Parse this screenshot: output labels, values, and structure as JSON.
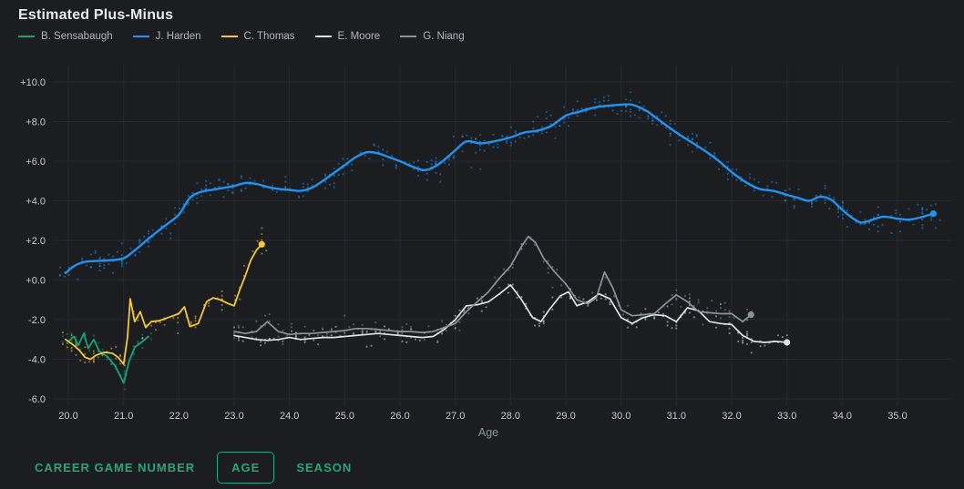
{
  "header": {
    "title": "Estimated Plus-Minus"
  },
  "legend": [
    {
      "label": "B. Sensabaugh",
      "color": "#1fa173"
    },
    {
      "label": "J. Harden",
      "color": "#2492f0"
    },
    {
      "label": "C. Thomas",
      "color": "#f3c73f"
    },
    {
      "label": "E. Moore",
      "color": "#dfe1e4"
    },
    {
      "label": "G. Niang",
      "color": "#8f9398"
    }
  ],
  "controls": {
    "career_game_number_label": "CAREER GAME NUMBER",
    "age_label": "AGE",
    "season_label": "SEASON",
    "selected": "AGE",
    "accent_color": "#2aa57c"
  },
  "chart_data": {
    "type": "line+scatter",
    "title": "Estimated Plus-Minus",
    "xlabel": "Age",
    "ylabel": "",
    "grid": true,
    "legend_position": "top",
    "xlim": [
      19.72,
      35.97
    ],
    "ylim": [
      -6,
      10
    ],
    "x_ticks": {
      "values": [
        20,
        21,
        22,
        23,
        24,
        25,
        26,
        27,
        28,
        29,
        30,
        31,
        32,
        33,
        34,
        35
      ],
      "labels": [
        "20.0",
        "21.0",
        "22.0",
        "23.0",
        "24.0",
        "25.0",
        "26.0",
        "27.0",
        "28.0",
        "29.0",
        "30.0",
        "31.0",
        "32.0",
        "33.0",
        "34.0",
        "35.0"
      ]
    },
    "y_ticks": {
      "values": [
        -6,
        -4,
        -2,
        0,
        2,
        4,
        6,
        8,
        10
      ],
      "labels": [
        "-6.0",
        "-4.0",
        "-2.0",
        "+0.0",
        "+2.0",
        "+4.0",
        "+6.0",
        "+8.0",
        "+10.0"
      ]
    },
    "series": [
      {
        "name": "B. Sensabaugh",
        "color": "#1fa173",
        "width": 1.8,
        "smooth": false,
        "end_dot": false,
        "scatter": {
          "seed": 11,
          "count": 55,
          "xmin": 19.9,
          "xmax": 21.55,
          "jitter": 0.45
        },
        "line": [
          [
            20.0,
            -3.1
          ],
          [
            20.1,
            -2.85
          ],
          [
            20.18,
            -3.3
          ],
          [
            20.28,
            -2.7
          ],
          [
            20.36,
            -3.45
          ],
          [
            20.46,
            -3.0
          ],
          [
            20.56,
            -3.6
          ],
          [
            20.7,
            -3.85
          ],
          [
            20.85,
            -4.35
          ],
          [
            21.0,
            -5.2
          ],
          [
            21.1,
            -4.1
          ],
          [
            21.2,
            -3.4
          ],
          [
            21.32,
            -3.15
          ],
          [
            21.45,
            -2.85
          ]
        ]
      },
      {
        "name": "J. Harden",
        "color": "#2492f0",
        "width": 2.4,
        "smooth": true,
        "end_dot": true,
        "scatter": {
          "seed": 7,
          "count": 500,
          "xmin": 19.85,
          "xmax": 35.78,
          "jitter": 0.6
        },
        "line": [
          [
            19.95,
            0.35
          ],
          [
            20.1,
            0.7
          ],
          [
            20.3,
            0.92
          ],
          [
            20.5,
            0.96
          ],
          [
            20.75,
            1.0
          ],
          [
            21.0,
            1.1
          ],
          [
            21.2,
            1.5
          ],
          [
            21.5,
            2.2
          ],
          [
            21.75,
            2.75
          ],
          [
            22.0,
            3.3
          ],
          [
            22.2,
            4.15
          ],
          [
            22.4,
            4.45
          ],
          [
            22.6,
            4.55
          ],
          [
            22.8,
            4.65
          ],
          [
            23.0,
            4.75
          ],
          [
            23.2,
            4.9
          ],
          [
            23.4,
            4.85
          ],
          [
            23.6,
            4.7
          ],
          [
            23.8,
            4.6
          ],
          [
            24.0,
            4.55
          ],
          [
            24.2,
            4.5
          ],
          [
            24.4,
            4.65
          ],
          [
            24.6,
            5.0
          ],
          [
            24.8,
            5.4
          ],
          [
            25.0,
            5.8
          ],
          [
            25.2,
            6.2
          ],
          [
            25.4,
            6.45
          ],
          [
            25.6,
            6.4
          ],
          [
            25.8,
            6.2
          ],
          [
            26.0,
            6.0
          ],
          [
            26.2,
            5.75
          ],
          [
            26.45,
            5.55
          ],
          [
            26.7,
            5.85
          ],
          [
            27.0,
            6.55
          ],
          [
            27.2,
            7.0
          ],
          [
            27.45,
            6.9
          ],
          [
            27.7,
            7.0
          ],
          [
            28.0,
            7.2
          ],
          [
            28.25,
            7.45
          ],
          [
            28.5,
            7.55
          ],
          [
            28.75,
            7.8
          ],
          [
            29.0,
            8.3
          ],
          [
            29.25,
            8.5
          ],
          [
            29.5,
            8.7
          ],
          [
            29.75,
            8.8
          ],
          [
            30.0,
            8.85
          ],
          [
            30.2,
            8.85
          ],
          [
            30.45,
            8.55
          ],
          [
            30.7,
            8.05
          ],
          [
            31.0,
            7.45
          ],
          [
            31.25,
            7.0
          ],
          [
            31.5,
            6.55
          ],
          [
            31.75,
            6.05
          ],
          [
            32.0,
            5.45
          ],
          [
            32.25,
            4.95
          ],
          [
            32.5,
            4.6
          ],
          [
            32.75,
            4.5
          ],
          [
            33.0,
            4.3
          ],
          [
            33.2,
            4.15
          ],
          [
            33.4,
            4.0
          ],
          [
            33.6,
            4.2
          ],
          [
            33.8,
            4.05
          ],
          [
            34.0,
            3.55
          ],
          [
            34.2,
            3.1
          ],
          [
            34.35,
            2.9
          ],
          [
            34.55,
            3.05
          ],
          [
            34.75,
            3.2
          ],
          [
            35.0,
            3.1
          ],
          [
            35.2,
            3.05
          ],
          [
            35.4,
            3.15
          ],
          [
            35.65,
            3.35
          ]
        ]
      },
      {
        "name": "C. Thomas",
        "color": "#f3c73f",
        "width": 1.8,
        "smooth": false,
        "end_dot": true,
        "scatter": {
          "seed": 13,
          "count": 95,
          "xmin": 19.9,
          "xmax": 23.55,
          "jitter": 0.5
        },
        "line": [
          [
            19.95,
            -3.0
          ],
          [
            20.1,
            -3.3
          ],
          [
            20.2,
            -3.55
          ],
          [
            20.3,
            -3.9
          ],
          [
            20.4,
            -4.0
          ],
          [
            20.5,
            -3.8
          ],
          [
            20.65,
            -3.65
          ],
          [
            20.8,
            -3.7
          ],
          [
            20.9,
            -3.9
          ],
          [
            21.0,
            -4.25
          ],
          [
            21.07,
            -2.9
          ],
          [
            21.12,
            -0.95
          ],
          [
            21.2,
            -2.1
          ],
          [
            21.3,
            -1.6
          ],
          [
            21.4,
            -2.4
          ],
          [
            21.5,
            -2.1
          ],
          [
            21.65,
            -2.05
          ],
          [
            21.8,
            -1.9
          ],
          [
            22.0,
            -1.7
          ],
          [
            22.1,
            -1.35
          ],
          [
            22.2,
            -2.35
          ],
          [
            22.35,
            -2.2
          ],
          [
            22.5,
            -1.1
          ],
          [
            22.62,
            -0.9
          ],
          [
            22.75,
            -1.0
          ],
          [
            22.9,
            -1.2
          ],
          [
            23.0,
            -1.3
          ],
          [
            23.1,
            -0.5
          ],
          [
            23.2,
            0.2
          ],
          [
            23.3,
            1.0
          ],
          [
            23.4,
            1.5
          ],
          [
            23.5,
            1.8
          ]
        ]
      },
      {
        "name": "E. Moore",
        "color": "#dfe1e4",
        "width": 1.7,
        "smooth": false,
        "end_dot": true,
        "scatter": {
          "seed": 17,
          "count": 170,
          "xmin": 23.0,
          "xmax": 33.0,
          "jitter": 0.45
        },
        "line": [
          [
            23.0,
            -2.8
          ],
          [
            23.2,
            -2.9
          ],
          [
            23.4,
            -3.0
          ],
          [
            23.6,
            -3.05
          ],
          [
            23.8,
            -3.0
          ],
          [
            24.0,
            -2.9
          ],
          [
            24.2,
            -3.0
          ],
          [
            24.4,
            -2.95
          ],
          [
            24.6,
            -2.9
          ],
          [
            24.8,
            -2.9
          ],
          [
            25.0,
            -2.85
          ],
          [
            25.2,
            -2.8
          ],
          [
            25.4,
            -2.75
          ],
          [
            25.6,
            -2.7
          ],
          [
            25.8,
            -2.75
          ],
          [
            26.0,
            -2.8
          ],
          [
            26.2,
            -2.85
          ],
          [
            26.4,
            -2.9
          ],
          [
            26.6,
            -2.85
          ],
          [
            26.8,
            -2.5
          ],
          [
            27.0,
            -2.0
          ],
          [
            27.2,
            -1.3
          ],
          [
            27.4,
            -1.25
          ],
          [
            27.6,
            -1.1
          ],
          [
            27.8,
            -0.7
          ],
          [
            28.0,
            -0.25
          ],
          [
            28.2,
            -1.0
          ],
          [
            28.4,
            -1.9
          ],
          [
            28.55,
            -2.1
          ],
          [
            28.7,
            -1.5
          ],
          [
            28.9,
            -0.8
          ],
          [
            29.05,
            -0.6
          ],
          [
            29.2,
            -1.3
          ],
          [
            29.4,
            -1.1
          ],
          [
            29.6,
            -0.7
          ],
          [
            29.8,
            -0.95
          ],
          [
            30.0,
            -1.9
          ],
          [
            30.2,
            -2.2
          ],
          [
            30.4,
            -1.9
          ],
          [
            30.6,
            -1.75
          ],
          [
            30.8,
            -1.8
          ],
          [
            31.0,
            -2.1
          ],
          [
            31.2,
            -1.4
          ],
          [
            31.4,
            -1.55
          ],
          [
            31.6,
            -2.1
          ],
          [
            31.8,
            -2.2
          ],
          [
            32.0,
            -2.25
          ],
          [
            32.2,
            -2.8
          ],
          [
            32.4,
            -3.1
          ],
          [
            32.6,
            -3.15
          ],
          [
            32.8,
            -3.1
          ],
          [
            33.0,
            -3.15
          ]
        ]
      },
      {
        "name": "G. Niang",
        "color": "#8f9398",
        "width": 1.7,
        "smooth": false,
        "end_dot": true,
        "scatter": {
          "seed": 23,
          "count": 170,
          "xmin": 23.0,
          "xmax": 32.4,
          "jitter": 0.5
        },
        "line": [
          [
            23.0,
            -2.6
          ],
          [
            23.2,
            -2.7
          ],
          [
            23.4,
            -2.6
          ],
          [
            23.6,
            -2.1
          ],
          [
            23.8,
            -2.6
          ],
          [
            24.0,
            -2.75
          ],
          [
            24.2,
            -2.7
          ],
          [
            24.4,
            -2.7
          ],
          [
            24.6,
            -2.65
          ],
          [
            24.8,
            -2.6
          ],
          [
            25.0,
            -2.55
          ],
          [
            25.2,
            -2.45
          ],
          [
            25.4,
            -2.45
          ],
          [
            25.6,
            -2.5
          ],
          [
            25.8,
            -2.55
          ],
          [
            26.0,
            -2.6
          ],
          [
            26.2,
            -2.6
          ],
          [
            26.4,
            -2.65
          ],
          [
            26.6,
            -2.6
          ],
          [
            26.8,
            -2.4
          ],
          [
            27.0,
            -2.2
          ],
          [
            27.2,
            -1.6
          ],
          [
            27.4,
            -1.1
          ],
          [
            27.6,
            -0.6
          ],
          [
            27.8,
            0.1
          ],
          [
            28.0,
            0.7
          ],
          [
            28.2,
            1.7
          ],
          [
            28.32,
            2.2
          ],
          [
            28.45,
            1.9
          ],
          [
            28.6,
            1.1
          ],
          [
            28.8,
            0.4
          ],
          [
            29.0,
            -0.2
          ],
          [
            29.2,
            -1.0
          ],
          [
            29.4,
            -1.2
          ],
          [
            29.55,
            -0.9
          ],
          [
            29.7,
            0.4
          ],
          [
            29.85,
            -0.4
          ],
          [
            30.0,
            -1.5
          ],
          [
            30.2,
            -1.8
          ],
          [
            30.4,
            -1.75
          ],
          [
            30.6,
            -1.7
          ],
          [
            30.8,
            -1.2
          ],
          [
            31.0,
            -0.75
          ],
          [
            31.2,
            -1.1
          ],
          [
            31.4,
            -1.6
          ],
          [
            31.6,
            -1.65
          ],
          [
            31.8,
            -1.7
          ],
          [
            32.0,
            -1.7
          ],
          [
            32.2,
            -2.1
          ],
          [
            32.35,
            -1.75
          ]
        ]
      }
    ]
  }
}
